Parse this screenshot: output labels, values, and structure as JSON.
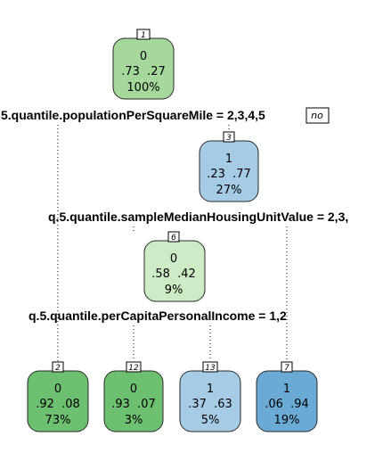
{
  "tree": {
    "nodes": [
      {
        "id": "1",
        "class_label": "0",
        "probs": ".73  .27",
        "percent": "100%",
        "fill": "#a6d79b",
        "kind": "root"
      },
      {
        "id": "3",
        "class_label": "1",
        "probs": ".23  .77",
        "percent": "27%",
        "fill": "#a6cbe4",
        "kind": "internal"
      },
      {
        "id": "6",
        "class_label": "0",
        "probs": ".58  .42",
        "percent": "9%",
        "fill": "#cdebc4",
        "kind": "internal"
      },
      {
        "id": "2",
        "class_label": "0",
        "probs": ".92  .08",
        "percent": "73%",
        "fill": "#6ec071",
        "kind": "leaf"
      },
      {
        "id": "12",
        "class_label": "0",
        "probs": ".93  .07",
        "percent": "3%",
        "fill": "#6ec071",
        "kind": "leaf"
      },
      {
        "id": "13",
        "class_label": "1",
        "probs": ".37  .63",
        "percent": "5%",
        "fill": "#a6cbe4",
        "kind": "leaf"
      },
      {
        "id": "7",
        "class_label": "1",
        "probs": ".06  .94",
        "percent": "19%",
        "fill": "#6aaad4",
        "kind": "leaf"
      }
    ],
    "splits": [
      {
        "text": "5.quantile.populationPerSquareMile = 2,3,4,5"
      },
      {
        "text": "q.5.quantile.sampleMedianHousingUnitValue = 2,3,"
      },
      {
        "text": "q.5.quantile.perCapitaPersonalIncome = 1,2"
      }
    ],
    "no_label": "no"
  }
}
